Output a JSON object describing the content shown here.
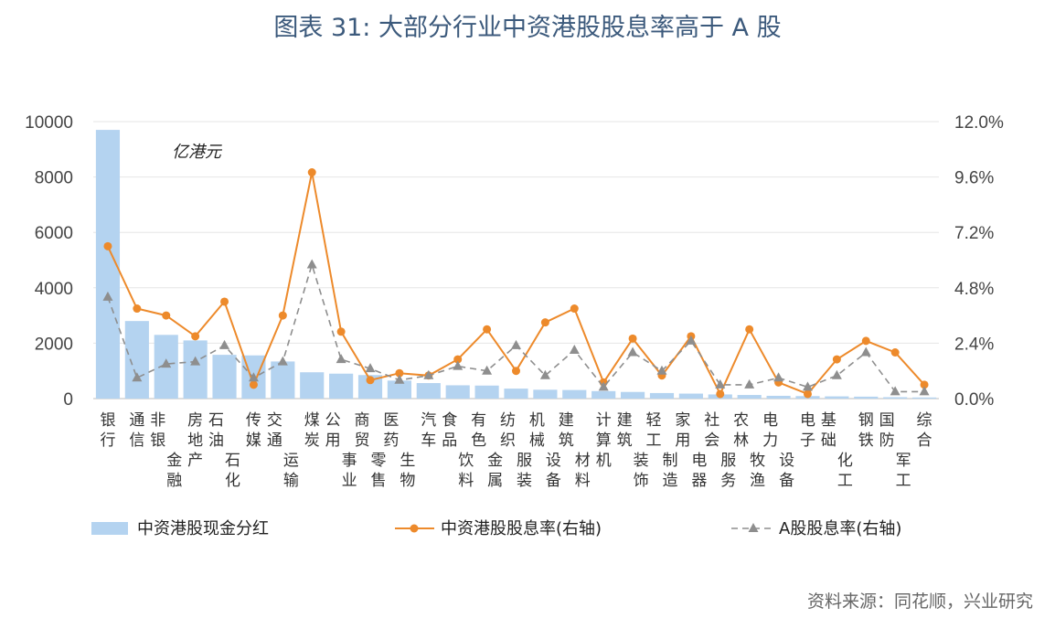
{
  "title": "图表 31: 大部分行业中资港股股息率高于 A 股",
  "source": "资料来源：同花顺，兴业研究",
  "chart_data": {
    "type": "bar",
    "unit_label": "亿港元",
    "left_axis": {
      "ticks": [
        "0",
        "2000",
        "4000",
        "6000",
        "8000",
        "10000"
      ],
      "ylim": [
        0,
        10000
      ]
    },
    "right_axis": {
      "ticks": [
        "0.0%",
        "2.4%",
        "4.8%",
        "7.2%",
        "9.6%",
        "12.0%"
      ],
      "ylim": [
        0,
        12
      ]
    },
    "categories": [
      "银行",
      "通信",
      "非银金融",
      "房地产",
      "石油石化",
      "传媒",
      "交通运输",
      "煤炭",
      "公用事业",
      "商贸零售",
      "医药生物",
      "汽车",
      "食品饮料",
      "有色金属",
      "纺织服装",
      "机械设备",
      "建筑材料",
      "计算机",
      "建筑装饰",
      "轻工制造",
      "家用电器",
      "社会服务",
      "农林牧渔",
      "电力设备",
      "电子",
      "基础化工",
      "钢铁",
      "国防军工",
      "综合"
    ],
    "series": [
      {
        "name": "中资港股现金分红",
        "kind": "bar",
        "axis": "left",
        "color": "#b4d3f0",
        "values": [
          9700,
          2800,
          2300,
          2100,
          1580,
          1560,
          1340,
          950,
          900,
          850,
          650,
          560,
          480,
          470,
          360,
          320,
          310,
          270,
          240,
          200,
          180,
          150,
          130,
          100,
          90,
          80,
          70,
          50,
          40
        ]
      },
      {
        "name": "中资港股股息率(右轴)",
        "kind": "line",
        "axis": "right",
        "color": "#ed8a2b",
        "values": [
          6.6,
          3.9,
          3.6,
          2.7,
          4.2,
          0.6,
          3.6,
          9.8,
          2.9,
          0.8,
          1.1,
          1.0,
          1.7,
          3.0,
          1.2,
          3.3,
          3.9,
          0.7,
          2.6,
          1.0,
          2.7,
          0.2,
          3.0,
          0.7,
          0.2,
          1.7,
          2.5,
          2.0,
          0.6
        ]
      },
      {
        "name": "A股股息率(右轴)",
        "kind": "dashed-line",
        "axis": "right",
        "color": "#8e8e8e",
        "values": [
          4.4,
          0.9,
          1.5,
          1.6,
          2.3,
          0.9,
          1.6,
          5.8,
          1.7,
          1.3,
          0.8,
          1.0,
          1.4,
          1.2,
          2.3,
          1.0,
          2.1,
          0.5,
          2.0,
          1.2,
          2.5,
          0.6,
          0.6,
          0.9,
          0.5,
          1.0,
          2.0,
          0.3,
          0.3
        ]
      }
    ]
  }
}
